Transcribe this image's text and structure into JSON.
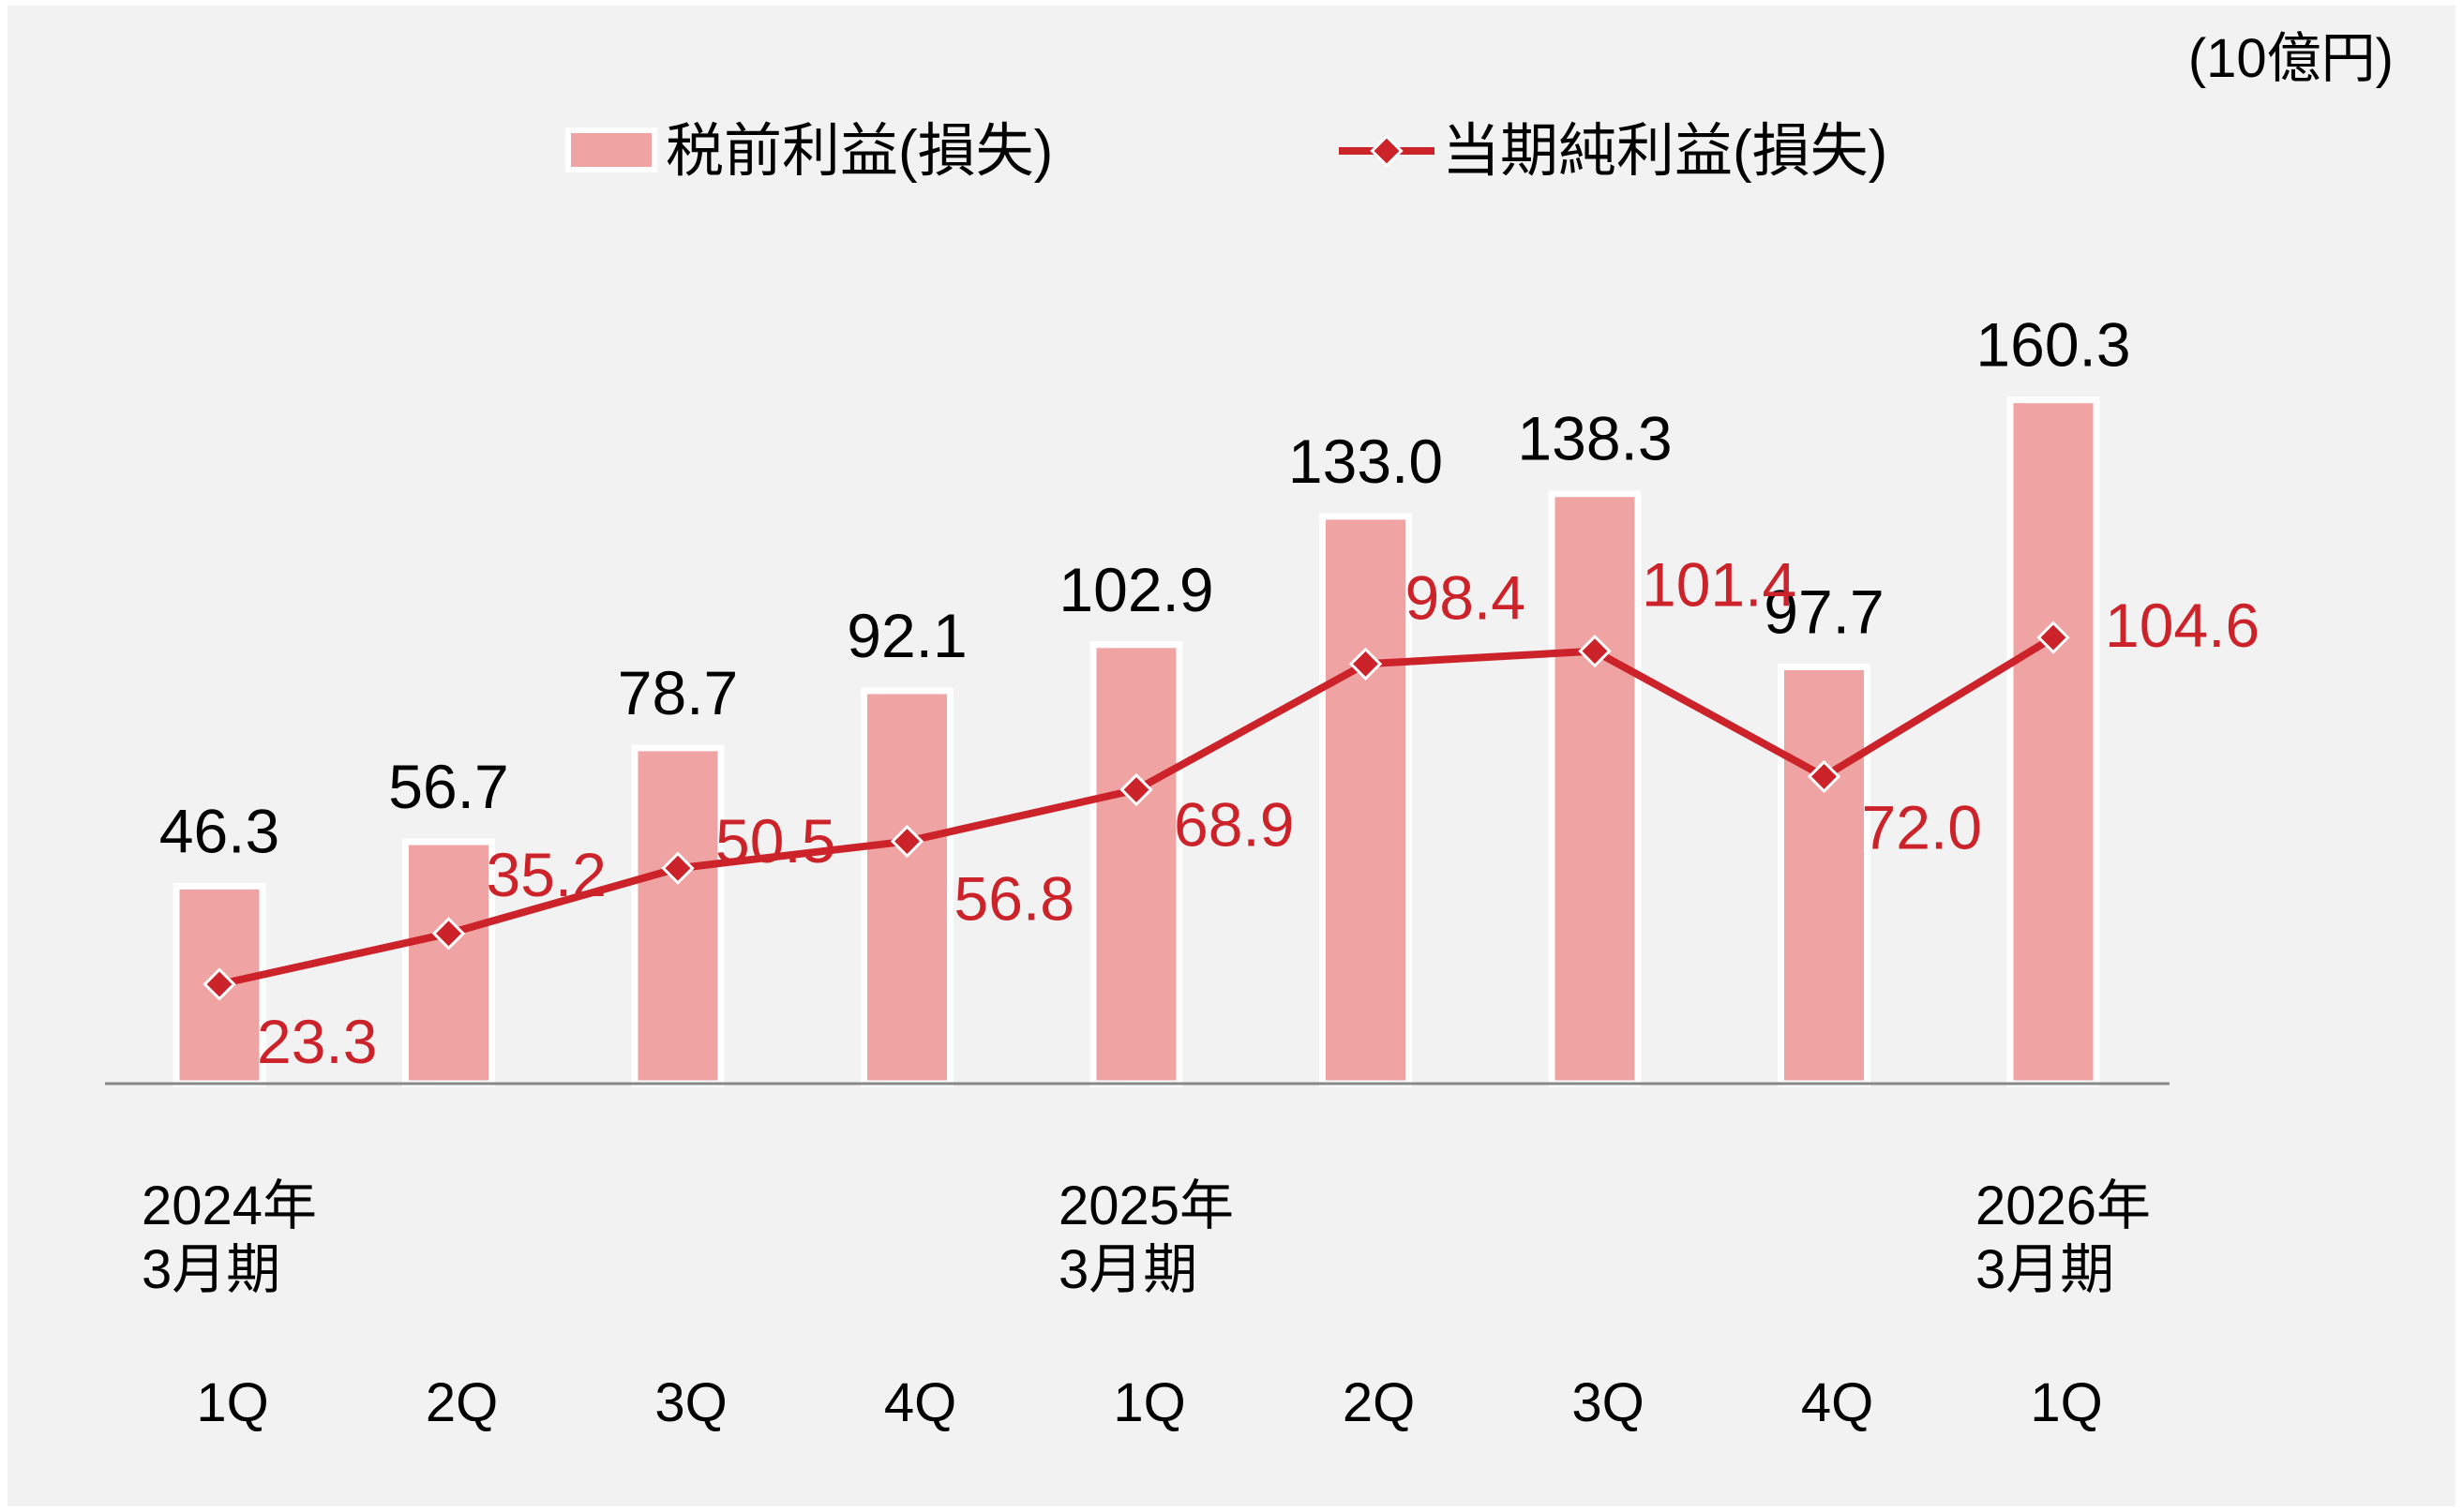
{
  "chart_data": {
    "type": "bar",
    "unit_label": "(10億円)",
    "categories": [
      "1Q",
      "2Q",
      "3Q",
      "4Q",
      "1Q",
      "2Q",
      "3Q",
      "4Q",
      "1Q"
    ],
    "period_labels": [
      {
        "category_index": 0,
        "lines": [
          "2024年",
          "3月期"
        ]
      },
      {
        "category_index": 4,
        "lines": [
          "2025年",
          "3月期"
        ]
      },
      {
        "category_index": 8,
        "lines": [
          "2026年",
          "3月期"
        ]
      }
    ],
    "series": [
      {
        "name": "税前利益(損失)",
        "type": "bar",
        "color": "#f0a3a3",
        "values": [
          46.3,
          56.7,
          78.7,
          92.1,
          102.9,
          133.0,
          138.3,
          97.7,
          160.3
        ],
        "labels": [
          "46.3",
          "56.7",
          "78.7",
          "92.1",
          "102.9",
          "133.0",
          "138.3",
          "97.7",
          "160.3"
        ]
      },
      {
        "name": "当期純利益(損失)",
        "type": "line",
        "color": "#cc2229",
        "values": [
          23.3,
          35.2,
          50.5,
          56.8,
          68.9,
          98.4,
          101.4,
          72.0,
          104.6
        ],
        "labels": [
          "23.3",
          "35.2",
          "50.5",
          "56.8",
          "68.9",
          "98.4",
          "101.4",
          "72.0",
          "104.6"
        ]
      }
    ],
    "ylim": [
      0,
      170
    ],
    "grid": false,
    "legend_position": "top"
  }
}
